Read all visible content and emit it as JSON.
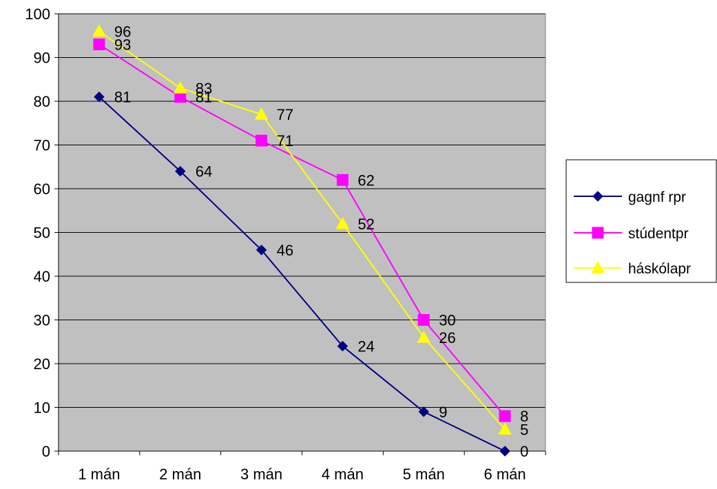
{
  "chart_data": {
    "type": "line",
    "title": "",
    "xlabel": "",
    "ylabel": "",
    "categories": [
      "1 mán",
      "2 mán",
      "3 mán",
      "4 mán",
      "5 mán",
      "6 mán"
    ],
    "ylim": [
      0,
      100
    ],
    "yticks": [
      0,
      10,
      20,
      30,
      40,
      50,
      60,
      70,
      80,
      90,
      100
    ],
    "grid": true,
    "plot_background": "#c0c0c0",
    "legend_position": "right",
    "series": [
      {
        "name": "gagnf rpr",
        "values": [
          81,
          64,
          46,
          24,
          9,
          0
        ],
        "color": "#000080",
        "marker": "diamond"
      },
      {
        "name": "stúdentpr",
        "values": [
          93,
          81,
          71,
          62,
          30,
          8
        ],
        "color": "#ff00ff",
        "marker": "square"
      },
      {
        "name": "háskólapr",
        "values": [
          96,
          83,
          77,
          52,
          26,
          5
        ],
        "color": "#ffff00",
        "marker": "triangle"
      }
    ]
  }
}
